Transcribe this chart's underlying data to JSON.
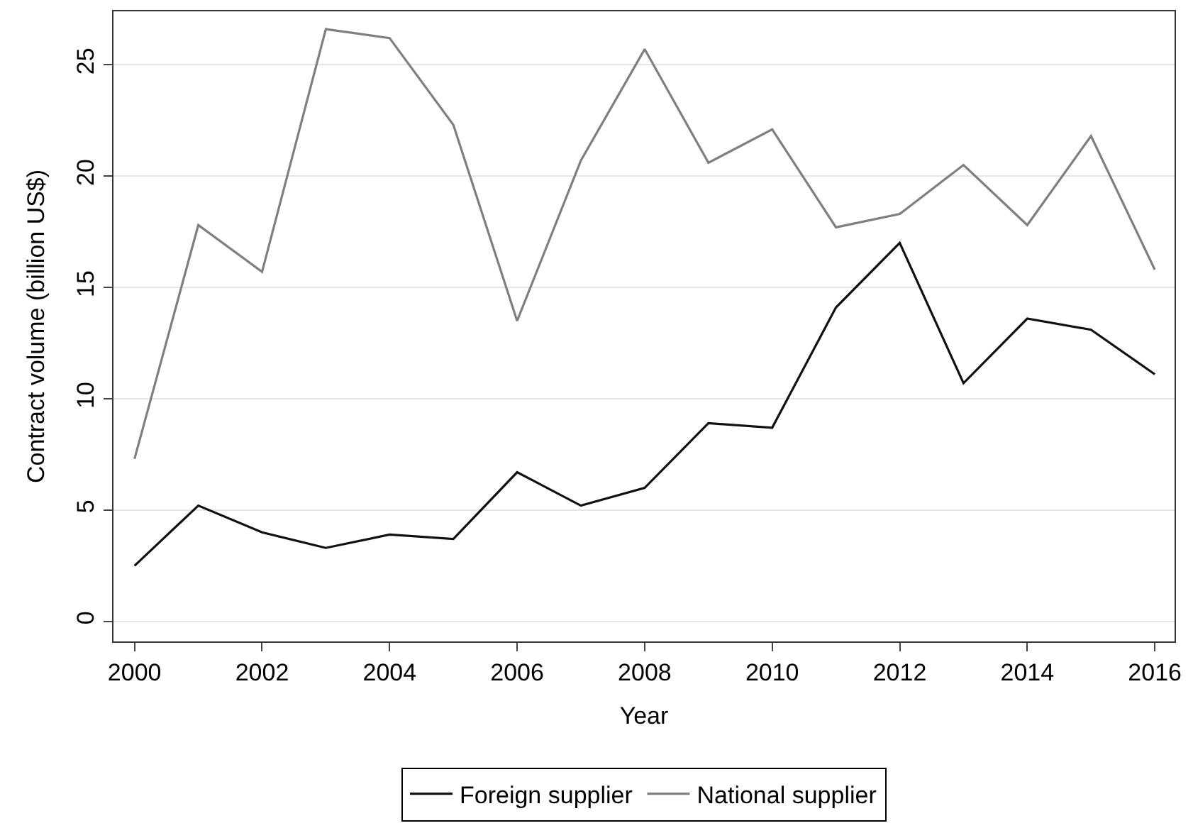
{
  "chart_data": {
    "type": "line",
    "xlabel": "Year",
    "ylabel": "Contract volume (billion US$)",
    "x": [
      2000,
      2001,
      2002,
      2003,
      2004,
      2005,
      2006,
      2007,
      2008,
      2009,
      2010,
      2011,
      2012,
      2013,
      2014,
      2015,
      2016
    ],
    "series": [
      {
        "name": "Foreign supplier",
        "color": "#111111",
        "values": [
          2.5,
          5.2,
          4.0,
          3.3,
          3.9,
          3.7,
          6.7,
          5.2,
          6.0,
          8.9,
          8.7,
          14.1,
          17.0,
          10.7,
          13.6,
          13.1,
          11.1
        ]
      },
      {
        "name": "National supplier",
        "color": "#7f7f7f",
        "values": [
          7.3,
          17.8,
          15.7,
          26.6,
          26.2,
          22.3,
          13.5,
          20.7,
          25.7,
          20.6,
          22.1,
          17.7,
          18.3,
          20.5,
          17.8,
          21.8,
          15.8
        ]
      }
    ],
    "xlim": [
      1999.67,
      2016.31
    ],
    "xticks": [
      2000,
      2002,
      2004,
      2006,
      2008,
      2010,
      2012,
      2014,
      2016
    ],
    "ylim": [
      -0.9,
      27.4
    ],
    "yticks": [
      0,
      5,
      10,
      15,
      20,
      25
    ],
    "grid": "y",
    "legend": "bottom",
    "marker": "none",
    "line_style": "solid"
  }
}
